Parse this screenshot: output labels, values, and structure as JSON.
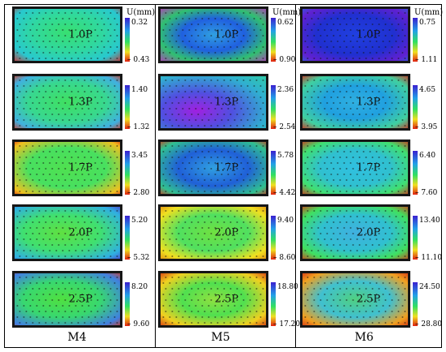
{
  "unit": "U(mm)",
  "colors": {
    "scale_top": "#3a20d0",
    "scale_upper": "#22a0e8",
    "scale_mid": "#30e060",
    "scale_lower": "#f0e020",
    "scale_bottom": "#e02010",
    "background": "#161616"
  },
  "columns": [
    {
      "title": "M4",
      "panels": [
        {
          "load": "1.0P",
          "max": "0.32",
          "min": "– 0.43"
        },
        {
          "load": "1.3P",
          "max": "1.40",
          "min": "– 1.32"
        },
        {
          "load": "1.7P",
          "max": "3.45",
          "min": "– 2.80"
        },
        {
          "load": "2.0P",
          "max": "5.20",
          "min": "– 5.32"
        },
        {
          "load": "2.5P",
          "max": "8.20",
          "min": "– 9.60"
        }
      ]
    },
    {
      "title": "M5",
      "panels": [
        {
          "load": "1.0P",
          "max": "0.62",
          "min": "– 0.90"
        },
        {
          "load": "1.3P",
          "max": "2.36",
          "min": "– 2.54"
        },
        {
          "load": "1.7P",
          "max": "5.78",
          "min": "– 4.42"
        },
        {
          "load": "2.0P",
          "max": "9.40",
          "min": "– 8.60"
        },
        {
          "load": "2.5P",
          "max": "18.80",
          "min": "– 17.20"
        }
      ]
    },
    {
      "title": "M6",
      "panels": [
        {
          "load": "1.0P",
          "max": "0.75",
          "min": "– 1.11"
        },
        {
          "load": "1.3P",
          "max": "4.65",
          "min": "– 3.95"
        },
        {
          "load": "1.7P",
          "max": "6.40",
          "min": "– 7.60"
        },
        {
          "load": "2.0P",
          "max": "13.40",
          "min": "– 11.10"
        },
        {
          "load": "2.5P",
          "max": "24.50",
          "min": "– 28.80"
        }
      ]
    }
  ]
}
